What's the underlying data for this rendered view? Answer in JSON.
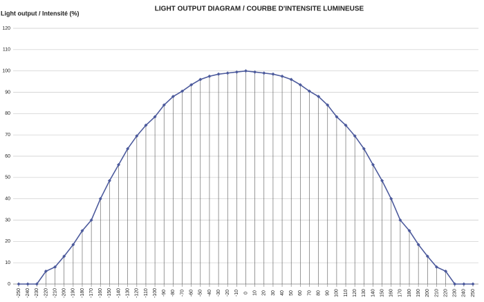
{
  "chart_data": {
    "type": "line",
    "title": "LIGHT OUTPUT DIAGRAM / COURBE D'INTENSITE LUMINEUSE",
    "y_label": "Light output / Intensité (%)",
    "x": [
      -250,
      -240,
      -230,
      -220,
      -210,
      -200,
      -190,
      -180,
      -170,
      -160,
      -150,
      -140,
      -130,
      -120,
      -110,
      -100,
      -90,
      -80,
      -70,
      -60,
      -50,
      -40,
      -30,
      -20,
      -10,
      0,
      10,
      20,
      30,
      40,
      50,
      60,
      70,
      80,
      90,
      100,
      110,
      120,
      130,
      140,
      150,
      160,
      170,
      180,
      190,
      200,
      210,
      220,
      230,
      240,
      250
    ],
    "series": [
      {
        "name": "Light output",
        "color": "#4c5a9c",
        "values": [
          0,
          0,
          0,
          6,
          8,
          13,
          18.5,
          25,
          30,
          40,
          48.5,
          56,
          63.5,
          69.5,
          74.5,
          78.5,
          84,
          88,
          90.5,
          93.5,
          96,
          97.5,
          98.5,
          99,
          99.5,
          100,
          99.5,
          99,
          98.5,
          97.5,
          96,
          93.5,
          90.5,
          88,
          84,
          78.5,
          74.5,
          69.5,
          63.5,
          56,
          48.5,
          40,
          30,
          25,
          18.5,
          13,
          8,
          6,
          0,
          0,
          0
        ]
      }
    ],
    "xlim": [
      -250,
      250
    ],
    "xticks": [
      -250,
      -240,
      -230,
      -220,
      -210,
      -200,
      -190,
      -180,
      -170,
      -160,
      -150,
      -140,
      -130,
      -120,
      -110,
      -100,
      -90,
      -80,
      -70,
      -60,
      -50,
      -40,
      -30,
      -20,
      -10,
      0,
      10,
      20,
      30,
      40,
      50,
      60,
      70,
      80,
      90,
      100,
      110,
      120,
      130,
      140,
      150,
      160,
      170,
      180,
      190,
      200,
      210,
      220,
      230,
      240,
      250
    ],
    "ylim": [
      0,
      120
    ],
    "yticks": [
      0,
      10,
      20,
      30,
      40,
      50,
      60,
      70,
      80,
      90,
      100,
      110,
      120
    ],
    "grid": true,
    "drop_lines": true
  }
}
